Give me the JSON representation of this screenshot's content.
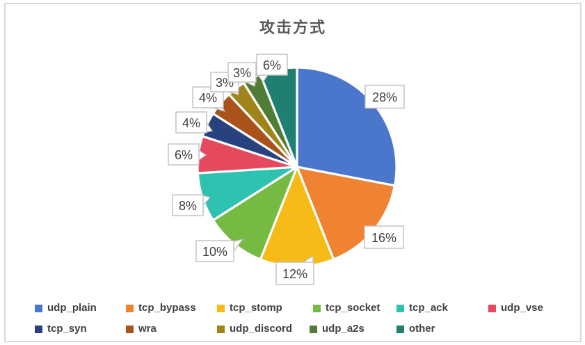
{
  "chart_data": {
    "type": "pie",
    "title": "攻击方式",
    "categories": [
      "udp_plain",
      "tcp_bypass",
      "tcp_stomp",
      "tcp_socket",
      "tcp_ack",
      "udp_vse",
      "tcp_syn",
      "wra",
      "udp_discord",
      "udp_a2s",
      "other"
    ],
    "values": [
      28,
      16,
      12,
      10,
      8,
      6,
      4,
      4,
      3,
      3,
      6
    ],
    "data_labels": [
      "28%",
      "16%",
      "12%",
      "10%",
      "8%",
      "6%",
      "4%",
      "4%",
      "3%",
      "3%",
      "6%"
    ],
    "unit": "%",
    "colors": [
      "#4A76CB",
      "#EF8332",
      "#F7BB17",
      "#75BA43",
      "#2EC3B1",
      "#E4495D",
      "#28427F",
      "#A9531A",
      "#9E8419",
      "#4F7D35",
      "#1F8071"
    ],
    "start_angle_deg": 0,
    "direction": "clockwise",
    "legend_position": "bottom",
    "grid": false
  },
  "styles": {
    "title_color": "#595959",
    "label_text_color": "#404040",
    "callout_border_color": "#bfbfbf",
    "card_border_color": "#d9d9d9",
    "slice_gap_color": "#ffffff"
  }
}
